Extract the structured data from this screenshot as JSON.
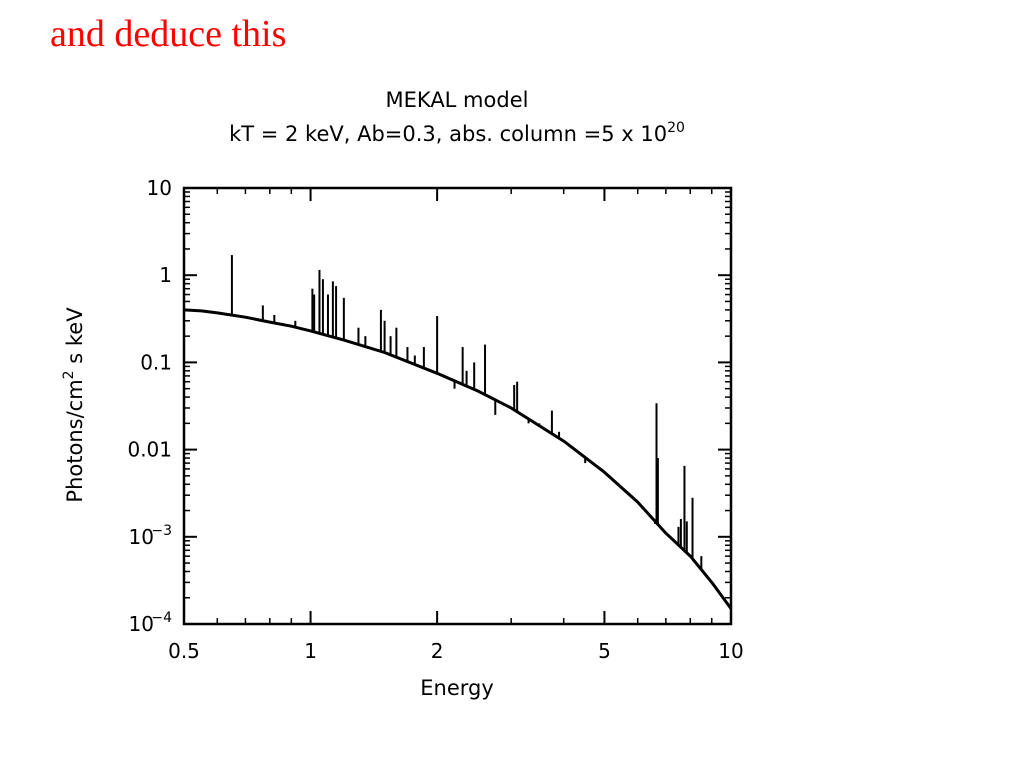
{
  "slide": {
    "heading": "and deduce this",
    "heading_color": "#ff0000"
  },
  "chart_data": {
    "type": "line",
    "title": "MEKAL model",
    "subtitle": {
      "text": "kT = 2 keV, Ab=0.3, abs. column =5 x 10",
      "superscript": "20"
    },
    "xlabel": "Energy",
    "ylabel": {
      "before": "Photons/cm",
      "superscript": "2",
      "after": " s keV"
    },
    "x_scale": "log",
    "y_scale": "log",
    "xlim": [
      0.5,
      10
    ],
    "ylim": [
      0.0001,
      10
    ],
    "x_ticks": [
      {
        "value": 0.5,
        "label": "0.5"
      },
      {
        "value": 1,
        "label": "1"
      },
      {
        "value": 2,
        "label": "2"
      },
      {
        "value": 5,
        "label": "5"
      },
      {
        "value": 10,
        "label": "10"
      }
    ],
    "y_ticks": [
      {
        "value": 10,
        "label": "10"
      },
      {
        "value": 1,
        "label": "1"
      },
      {
        "value": 0.1,
        "label": "0.1"
      },
      {
        "value": 0.01,
        "label": "0.01"
      },
      {
        "value": 0.001,
        "base": "10",
        "exp": "−3"
      },
      {
        "value": 0.0001,
        "base": "10",
        "exp": "−4"
      }
    ],
    "grid": false,
    "legend": "none",
    "line_color": "#000000",
    "continuum": {
      "x": [
        0.5,
        0.55,
        0.6,
        0.7,
        0.8,
        0.9,
        1.0,
        1.2,
        1.5,
        2.0,
        2.5,
        3.0,
        4.0,
        5.0,
        6.0,
        7.0,
        8.0,
        9.0,
        10.0
      ],
      "y": [
        0.4,
        0.39,
        0.37,
        0.33,
        0.29,
        0.26,
        0.23,
        0.18,
        0.13,
        0.075,
        0.047,
        0.03,
        0.0125,
        0.0055,
        0.0025,
        0.0011,
        0.0006,
        0.0003,
        0.00015
      ]
    },
    "lines": {
      "x": [
        0.65,
        0.77,
        0.82,
        0.92,
        1.01,
        1.02,
        1.05,
        1.07,
        1.1,
        1.13,
        1.15,
        1.2,
        1.3,
        1.35,
        1.47,
        1.5,
        1.55,
        1.6,
        1.7,
        1.77,
        1.86,
        2.0,
        2.2,
        2.3,
        2.35,
        2.45,
        2.6,
        2.75,
        3.05,
        3.1,
        3.3,
        3.5,
        3.75,
        3.9,
        4.5,
        6.6,
        6.65,
        6.7,
        7.5,
        7.6,
        7.75,
        7.85,
        8.1,
        8.5
      ],
      "y": [
        1.7,
        0.45,
        0.35,
        0.3,
        0.7,
        0.6,
        1.15,
        0.9,
        0.6,
        0.85,
        0.75,
        0.55,
        0.25,
        0.2,
        0.4,
        0.3,
        0.2,
        0.25,
        0.15,
        0.12,
        0.15,
        0.34,
        0.05,
        0.15,
        0.08,
        0.1,
        0.16,
        0.025,
        0.055,
        0.06,
        0.02,
        0.02,
        0.028,
        0.016,
        0.007,
        0.0014,
        0.034,
        0.008,
        0.0013,
        0.0016,
        0.0065,
        0.0015,
        0.0028,
        0.0006
      ]
    }
  }
}
